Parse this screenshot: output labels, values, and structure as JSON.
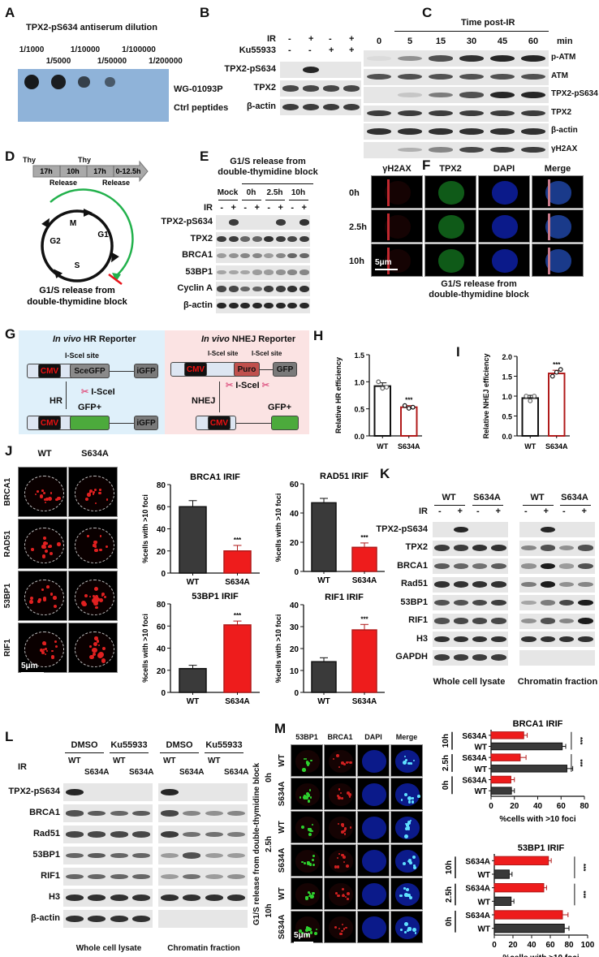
{
  "panels": {
    "A": {
      "letter": "A",
      "title": "TPX2-pS634 antiserum dilution",
      "dilutions": [
        "1/1000",
        "1/5000",
        "1/10000",
        "1/50000",
        "1/100000",
        "1/200000"
      ],
      "rows": [
        "WG-01093P",
        "Ctrl peptides"
      ],
      "dot_intensity": [
        1,
        0.95,
        0.6,
        0.35,
        0,
        0
      ],
      "membrane_color": "#8fb3d9"
    },
    "B": {
      "letter": "B",
      "conditions": [
        {
          "label": "IR",
          "values": [
            "-",
            "+",
            "-",
            "+"
          ]
        },
        {
          "label": "Ku55933",
          "values": [
            "-",
            "-",
            "+",
            "+"
          ]
        }
      ],
      "blots": [
        {
          "label": "TPX2-pS634",
          "bands": [
            0,
            0.9,
            0,
            0
          ]
        },
        {
          "label": "TPX2",
          "bands": [
            0.75,
            0.75,
            0.75,
            0.75
          ]
        },
        {
          "label": "β-actin",
          "bands": [
            0.8,
            0.8,
            0.8,
            0.8
          ]
        }
      ]
    },
    "C": {
      "letter": "C",
      "header": "Time post-IR",
      "times": [
        "0",
        "5",
        "15",
        "30",
        "45",
        "60"
      ],
      "unit": "min",
      "blots": [
        {
          "label": "p-ATM",
          "bands": [
            0.05,
            0.4,
            0.7,
            0.85,
            0.9,
            0.9
          ]
        },
        {
          "label": "ATM",
          "bands": [
            0.7,
            0.7,
            0.7,
            0.7,
            0.7,
            0.7
          ]
        },
        {
          "label": "TPX2-pS634",
          "bands": [
            0,
            0.15,
            0.5,
            0.7,
            0.9,
            0.9
          ]
        },
        {
          "label": "TPX2",
          "bands": [
            0.8,
            0.8,
            0.8,
            0.8,
            0.8,
            0.8
          ]
        },
        {
          "label": "β-actin",
          "bands": [
            0.85,
            0.85,
            0.85,
            0.85,
            0.85,
            0.85
          ]
        },
        {
          "label": "γH2AX",
          "bands": [
            0,
            0.25,
            0.45,
            0.75,
            0.8,
            0.8
          ]
        }
      ]
    },
    "D": {
      "letter": "D",
      "thy": [
        "Thy",
        "Thy"
      ],
      "segments": [
        "17h",
        "10h",
        "17h",
        "0-12.5h"
      ],
      "release": [
        "Release",
        "Release"
      ],
      "phases": [
        "M",
        "G1",
        "S",
        "G2"
      ],
      "caption_line1": "G1/S release from",
      "caption_line2": "double-thymidine block",
      "arc_color": "#22b14c",
      "block_color": "#e8141b"
    },
    "E": {
      "letter": "E",
      "title_line1": "G1/S release from",
      "title_line2": "double-thymidine block",
      "groups": [
        "Mock",
        "0h",
        "2.5h",
        "10h"
      ],
      "ir_label": "IR",
      "ir": [
        "-",
        "+",
        "-",
        "+",
        "-",
        "+",
        "-",
        "+"
      ],
      "blots": [
        {
          "label": "TPX2-pS634",
          "bands": [
            0,
            0.8,
            0,
            0,
            0,
            0.8,
            0,
            0.85
          ]
        },
        {
          "label": "TPX2",
          "bands": [
            0.8,
            0.8,
            0.6,
            0.6,
            0.85,
            0.8,
            0.75,
            0.8
          ]
        },
        {
          "label": "BRCA1",
          "bands": [
            0.35,
            0.4,
            0.45,
            0.45,
            0.35,
            0.45,
            0.6,
            0.6
          ]
        },
        {
          "label": "53BP1",
          "bands": [
            0.3,
            0.3,
            0.3,
            0.35,
            0.35,
            0.4,
            0.45,
            0.45
          ]
        },
        {
          "label": "Cyclin A",
          "bands": [
            0.75,
            0.75,
            0.6,
            0.6,
            0.8,
            0.8,
            0.85,
            0.85
          ]
        },
        {
          "label": "β-actin",
          "bands": [
            0.9,
            0.9,
            0.9,
            0.9,
            0.9,
            0.9,
            0.9,
            0.9
          ]
        }
      ]
    },
    "F": {
      "letter": "F",
      "columns": [
        "γH2AX",
        "TPX2",
        "DAPI",
        "Merge"
      ],
      "rows": [
        "0h",
        "2.5h",
        "10h"
      ],
      "scale_bar": "5μm",
      "caption_line1": "G1/S release from",
      "caption_line2": "double-thymidine block"
    },
    "G": {
      "letter": "G",
      "hr": {
        "title_italic": "In vivo",
        "title": "HR Reporter",
        "site": "I-SceI site",
        "promoter": "CMV",
        "gene": "SceGFP",
        "igfp": "iGFP",
        "repair": "HR",
        "enzyme": "I-SceI",
        "product": "GFP+"
      },
      "nhej": {
        "title_italic": "In vivo",
        "title": "NHEJ Reporter",
        "site1": "I-SceI site",
        "site2": "I-SceI site",
        "promoter": "CMV",
        "puro": "Puro",
        "gfp": "GFP",
        "repair": "NHEJ",
        "enzyme": "I-SceI",
        "product": "GFP+"
      },
      "hr_bg": "#dff0fa",
      "nhej_bg": "#fbe3e3"
    },
    "H": {
      "letter": "H"
    },
    "I": {
      "letter": "I"
    },
    "J": {
      "letter": "J",
      "columns": [
        "WT",
        "S634A"
      ],
      "rows": [
        "BRCA1",
        "RAD51",
        "53BP1",
        "RIF1"
      ],
      "scale_bar": "5μm"
    },
    "K": {
      "letter": "K",
      "groups": [
        "WT",
        "S634A",
        "WT",
        "S634A"
      ],
      "ir_label": "IR",
      "ir": [
        "-",
        "+",
        "-",
        "+",
        "-",
        "+",
        "-",
        "+"
      ],
      "blots": [
        {
          "label": "TPX2-pS634",
          "bands": [
            0,
            0.9,
            0,
            0,
            0,
            0.9,
            0,
            0
          ]
        },
        {
          "label": "TPX2",
          "bands": [
            0.8,
            0.8,
            0.85,
            0.85,
            0.45,
            0.7,
            0.4,
            0.7
          ]
        },
        {
          "label": "BRCA1",
          "bands": [
            0.65,
            0.6,
            0.55,
            0.65,
            0.4,
            0.95,
            0.35,
            0.7
          ]
        },
        {
          "label": "Rad51",
          "bands": [
            0.85,
            0.85,
            0.85,
            0.85,
            0.5,
            0.95,
            0.4,
            0.45
          ]
        },
        {
          "label": "53BP1",
          "bands": [
            0.7,
            0.7,
            0.75,
            0.8,
            0.3,
            0.5,
            0.75,
            0.95
          ]
        },
        {
          "label": "RIF1",
          "bands": [
            0.7,
            0.75,
            0.75,
            0.75,
            0.4,
            0.7,
            0.45,
            0.95
          ]
        },
        {
          "label": "H3",
          "bands": [
            0.85,
            0.85,
            0.85,
            0.85,
            0.85,
            0.85,
            0.85,
            0.85
          ]
        },
        {
          "label": "GAPDH",
          "bands": [
            0.8,
            0.8,
            0.8,
            0.8,
            0,
            0,
            0,
            0
          ]
        }
      ],
      "captions": [
        "Whole cell lysate",
        "Chromatin fraction"
      ]
    },
    "L": {
      "letter": "L",
      "treatments": [
        "DMSO",
        "Ku55933",
        "DMSO",
        "Ku55933"
      ],
      "ir_label": "IR",
      "lanes": [
        "WT",
        "S634A",
        "WT",
        "S634A",
        "WT",
        "S634A",
        "WT",
        "S634A"
      ],
      "blots": [
        {
          "label": "TPX2-pS634",
          "bands": [
            0.9,
            0,
            0,
            0,
            0.9,
            0,
            0,
            0
          ]
        },
        {
          "label": "BRCA1",
          "bands": [
            0.7,
            0.65,
            0.6,
            0.65,
            0.75,
            0.45,
            0.4,
            0.45
          ]
        },
        {
          "label": "Rad51",
          "bands": [
            0.75,
            0.75,
            0.75,
            0.75,
            0.8,
            0.55,
            0.55,
            0.5
          ]
        },
        {
          "label": "53BP1",
          "bands": [
            0.6,
            0.65,
            0.6,
            0.6,
            0.35,
            0.7,
            0.35,
            0.35
          ]
        },
        {
          "label": "RIF1",
          "bands": [
            0.6,
            0.6,
            0.6,
            0.6,
            0.35,
            0.55,
            0.35,
            0.4
          ]
        },
        {
          "label": "H3",
          "bands": [
            0.85,
            0.85,
            0.85,
            0.85,
            0.85,
            0.85,
            0.85,
            0.85
          ]
        },
        {
          "label": "β-actin",
          "bands": [
            0.85,
            0.85,
            0.85,
            0.85,
            0,
            0,
            0,
            0
          ]
        }
      ],
      "captions": [
        "Whole cell lysate",
        "Chromatin fraction"
      ]
    },
    "M": {
      "letter": "M",
      "columns": [
        "53BP1",
        "BRCA1",
        "DAPI",
        "Merge"
      ],
      "times": [
        "0h",
        "2.5h",
        "10h"
      ],
      "genotypes": [
        "WT",
        "S634A"
      ],
      "side_label": "G1/S release from double-thymidine block",
      "scale_bar": "5μm"
    }
  },
  "colors": {
    "wt_bar": "#3a3a3a",
    "mutant_bar": "#ee1c1c",
    "mutant_outline": "#b01a1a"
  },
  "chart_data": [
    {
      "panel": "H",
      "type": "bar",
      "categories": [
        "WT",
        "S634A"
      ],
      "values": [
        0.92,
        0.53
      ],
      "errors": [
        0.06,
        0.03
      ],
      "points": [
        [
          1.0,
          0.88,
          0.9
        ],
        [
          0.56,
          0.51,
          0.53
        ]
      ],
      "ylabel": "Relative HR efficiency",
      "ylim": [
        0,
        1.5
      ],
      "yticks": [
        "0.0",
        "0.5",
        "1.0",
        "1.5"
      ],
      "annotations": [
        "",
        "***"
      ],
      "style": "outline"
    },
    {
      "panel": "I",
      "type": "bar",
      "categories": [
        "WT",
        "S634A"
      ],
      "values": [
        0.95,
        1.57
      ],
      "errors": [
        0.07,
        0.08
      ],
      "points": [
        [
          1.0,
          0.88,
          1.0
        ],
        [
          1.5,
          1.6,
          1.67
        ]
      ],
      "ylabel": "Relative NHEJ efficiency",
      "ylim": [
        0,
        2.0
      ],
      "yticks": [
        "0.0",
        "0.5",
        "1.0",
        "1.5",
        "2.0"
      ],
      "annotations": [
        "",
        "***"
      ],
      "style": "outline"
    },
    {
      "panel": "J",
      "type": "bar",
      "title": "BRCA1 IRIF",
      "categories": [
        "WT",
        "S634A"
      ],
      "values": [
        60,
        20
      ],
      "errors": [
        5.5,
        5
      ],
      "ylabel": "%cells with >10 foci",
      "ylim": [
        0,
        80
      ],
      "yticks": [
        "0",
        "20",
        "40",
        "60",
        "80"
      ],
      "annotations": [
        "",
        "***"
      ]
    },
    {
      "panel": "J",
      "type": "bar",
      "title": "RAD51 IRIF",
      "categories": [
        "WT",
        "S634A"
      ],
      "values": [
        47,
        16.5
      ],
      "errors": [
        3,
        3
      ],
      "ylabel": "%cells with >10 foci",
      "ylim": [
        0,
        60
      ],
      "yticks": [
        "0",
        "20",
        "40",
        "60"
      ],
      "annotations": [
        "",
        "***"
      ]
    },
    {
      "panel": "J",
      "type": "bar",
      "title": "53BP1 IRIF",
      "categories": [
        "WT",
        "S634A"
      ],
      "values": [
        21.5,
        61
      ],
      "errors": [
        3,
        3.5
      ],
      "ylabel": "%cells with >10 foci",
      "ylim": [
        0,
        80
      ],
      "yticks": [
        "0",
        "20",
        "40",
        "60",
        "80"
      ],
      "annotations": [
        "",
        "***"
      ]
    },
    {
      "panel": "J",
      "type": "bar",
      "title": "RIF1 IRIF",
      "categories": [
        "WT",
        "S634A"
      ],
      "values": [
        14,
        28.5
      ],
      "errors": [
        1.8,
        2.5
      ],
      "ylabel": "%cells with >10 foci",
      "ylim": [
        0,
        40
      ],
      "yticks": [
        "0",
        "10",
        "20",
        "30",
        "40"
      ],
      "annotations": [
        "",
        "***"
      ]
    },
    {
      "panel": "M",
      "type": "bar",
      "orientation": "horizontal",
      "title": "BRCA1 IRIF",
      "groups": [
        "10h",
        "2.5h",
        "0h"
      ],
      "categories": [
        "S634A",
        "WT",
        "S634A",
        "WT",
        "S634A",
        "WT"
      ],
      "values": [
        28,
        61,
        25,
        65,
        17,
        17.5
      ],
      "errors": [
        3,
        3,
        5,
        5,
        3,
        2.5
      ],
      "xlabel": "%cells with >10 foci",
      "xlim": [
        0,
        80
      ],
      "xticks": [
        "0",
        "20",
        "40",
        "60",
        "80"
      ],
      "annotations": [
        "***",
        "***"
      ]
    },
    {
      "panel": "M",
      "type": "bar",
      "orientation": "horizontal",
      "title": "53BP1 IRIF",
      "groups": [
        "10h",
        "2.5h",
        "0h"
      ],
      "categories": [
        "S634A",
        "WT",
        "S634A",
        "WT",
        "S634A",
        "WT"
      ],
      "values": [
        58,
        16,
        53,
        18,
        73,
        75
      ],
      "errors": [
        3,
        3,
        3,
        3,
        6,
        5
      ],
      "xlabel": "%cells with >10 foci",
      "xlim": [
        0,
        100
      ],
      "xticks": [
        "0",
        "20",
        "40",
        "60",
        "80",
        "100"
      ],
      "annotations": [
        "***",
        "***"
      ]
    }
  ]
}
